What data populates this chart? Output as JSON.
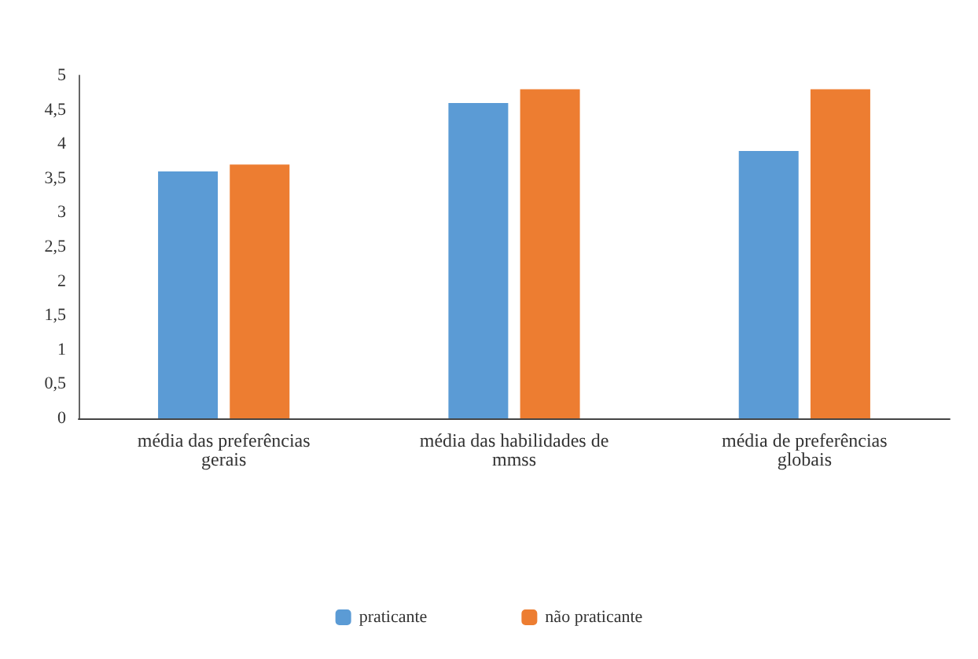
{
  "chart_data": {
    "type": "bar",
    "categories": [
      "média das preferências gerais",
      "média das habilidades de mmss",
      "média de preferências globais"
    ],
    "series": [
      {
        "name": "praticante",
        "color": "#5b9bd5",
        "values": [
          3.6,
          4.6,
          3.9
        ]
      },
      {
        "name": "não praticante",
        "color": "#ed7d31",
        "values": [
          3.7,
          4.8,
          4.8
        ]
      }
    ],
    "ylim": [
      0,
      5
    ],
    "yticks": [
      0,
      {
        "value": 0.5,
        "label": "0,5"
      },
      1,
      {
        "value": 1.5,
        "label": "1,5"
      },
      2,
      {
        "value": 2.5,
        "label": "2,5"
      },
      3,
      {
        "value": 3.5,
        "label": "3,5"
      },
      4,
      {
        "value": 4.5,
        "label": "4,5"
      },
      5
    ],
    "grid": false,
    "legend": "bottom"
  }
}
